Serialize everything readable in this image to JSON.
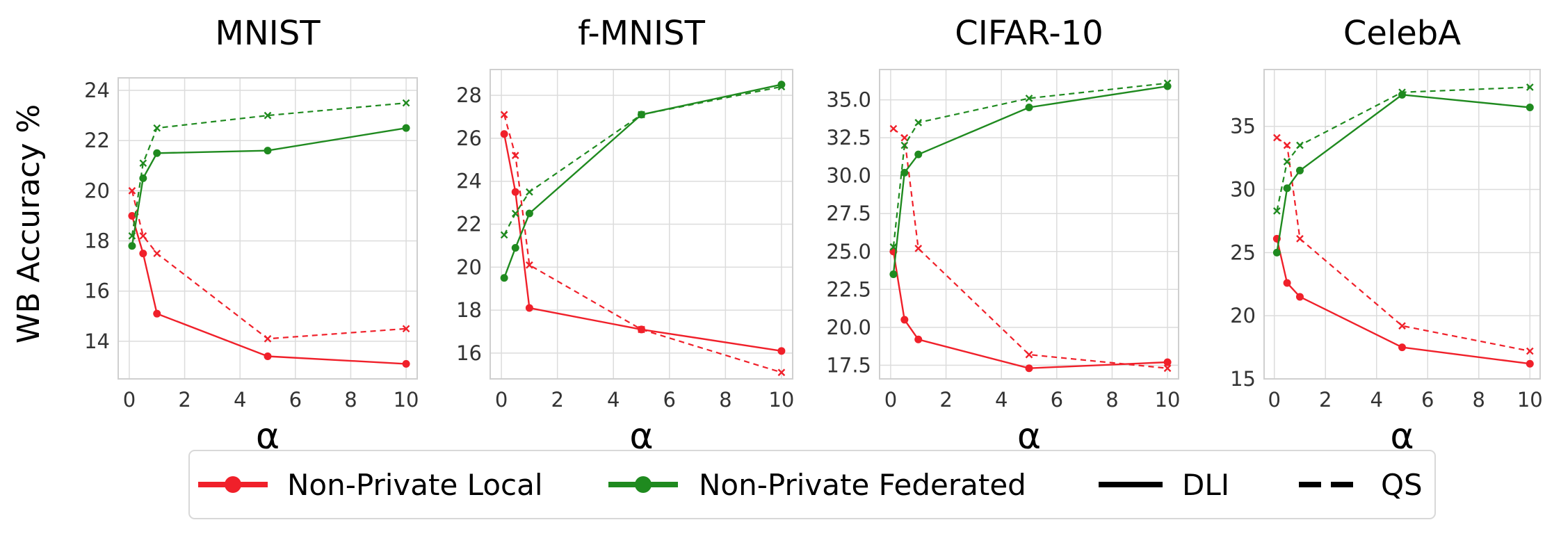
{
  "figure": {
    "ylabel": "WB Accuracy %",
    "legend": {
      "placement": "bottom-center",
      "entries": [
        {
          "label": "Non-Private Local",
          "color": "#f0202a",
          "style": "solid-marker"
        },
        {
          "label": "Non-Private Federated",
          "color": "#1f8a1f",
          "style": "solid-marker"
        },
        {
          "label": "DLI",
          "color": "#000000",
          "style": "solid"
        },
        {
          "label": "QS",
          "color": "#000000",
          "style": "dashed"
        }
      ]
    }
  },
  "chart_data": [
    {
      "type": "line",
      "title": "MNIST",
      "xlabel": "α",
      "ylabel": "WB Accuracy %",
      "xlim": [
        -0.4,
        10.4
      ],
      "ylim": [
        12.5,
        24.5
      ],
      "xticks": [
        0,
        2,
        4,
        6,
        8,
        10
      ],
      "yticks": [
        14,
        16,
        18,
        20,
        22,
        24
      ],
      "ytick_labels": [
        "14",
        "16",
        "18",
        "20",
        "22",
        "24"
      ],
      "grid": true,
      "x": [
        0.1,
        0.5,
        1,
        5,
        10
      ],
      "series": [
        {
          "name": "Non-Private Local",
          "method": "DLI",
          "color": "#f0202a",
          "dashed": false,
          "values": [
            19.0,
            17.5,
            15.1,
            13.4,
            13.1
          ]
        },
        {
          "name": "Non-Private Local",
          "method": "QS",
          "color": "#f0202a",
          "dashed": true,
          "values": [
            20.0,
            18.2,
            17.5,
            14.1,
            14.5
          ]
        },
        {
          "name": "Non-Private Federated",
          "method": "DLI",
          "color": "#1f8a1f",
          "dashed": false,
          "values": [
            17.8,
            20.5,
            21.5,
            21.6,
            22.5
          ]
        },
        {
          "name": "Non-Private Federated",
          "method": "QS",
          "color": "#1f8a1f",
          "dashed": true,
          "values": [
            18.2,
            21.1,
            22.5,
            23.0,
            23.5
          ]
        }
      ]
    },
    {
      "type": "line",
      "title": "f-MNIST",
      "xlabel": "α",
      "ylabel": "",
      "xlim": [
        -0.4,
        10.4
      ],
      "ylim": [
        14.8,
        29.2
      ],
      "xticks": [
        0,
        2,
        4,
        6,
        8,
        10
      ],
      "yticks": [
        16,
        18,
        20,
        22,
        24,
        26,
        28
      ],
      "ytick_labels": [
        "16",
        "18",
        "20",
        "22",
        "24",
        "26",
        "28"
      ],
      "grid": true,
      "x": [
        0.1,
        0.5,
        1,
        5,
        10
      ],
      "series": [
        {
          "name": "Non-Private Local",
          "method": "DLI",
          "color": "#f0202a",
          "dashed": false,
          "values": [
            26.2,
            23.5,
            18.1,
            17.1,
            16.1
          ]
        },
        {
          "name": "Non-Private Local",
          "method": "QS",
          "color": "#f0202a",
          "dashed": true,
          "values": [
            27.1,
            25.2,
            20.1,
            17.1,
            15.1
          ]
        },
        {
          "name": "Non-Private Federated",
          "method": "DLI",
          "color": "#1f8a1f",
          "dashed": false,
          "values": [
            19.5,
            20.9,
            22.5,
            27.1,
            28.5
          ]
        },
        {
          "name": "Non-Private Federated",
          "method": "QS",
          "color": "#1f8a1f",
          "dashed": true,
          "values": [
            21.5,
            22.5,
            23.5,
            27.1,
            28.4
          ]
        }
      ]
    },
    {
      "type": "line",
      "title": "CIFAR-10",
      "xlabel": "α",
      "ylabel": "",
      "xlim": [
        -0.4,
        10.4
      ],
      "ylim": [
        16.6,
        37.0
      ],
      "xticks": [
        0,
        2,
        4,
        6,
        8,
        10
      ],
      "yticks": [
        17.5,
        20.0,
        22.5,
        25.0,
        27.5,
        30.0,
        32.5,
        35.0
      ],
      "ytick_labels": [
        "17.5",
        "20.0",
        "22.5",
        "25.0",
        "27.5",
        "30.0",
        "32.5",
        "35.0"
      ],
      "grid": true,
      "x": [
        0.1,
        0.5,
        1,
        5,
        10
      ],
      "series": [
        {
          "name": "Non-Private Local",
          "method": "DLI",
          "color": "#f0202a",
          "dashed": false,
          "values": [
            25.0,
            20.5,
            19.2,
            17.3,
            17.7
          ]
        },
        {
          "name": "Non-Private Local",
          "method": "QS",
          "color": "#f0202a",
          "dashed": true,
          "values": [
            33.1,
            32.5,
            25.2,
            18.2,
            17.3
          ]
        },
        {
          "name": "Non-Private Federated",
          "method": "DLI",
          "color": "#1f8a1f",
          "dashed": false,
          "values": [
            23.5,
            30.2,
            31.4,
            34.5,
            35.9
          ]
        },
        {
          "name": "Non-Private Federated",
          "method": "QS",
          "color": "#1f8a1f",
          "dashed": true,
          "values": [
            25.3,
            32.0,
            33.5,
            35.1,
            36.1
          ]
        }
      ]
    },
    {
      "type": "line",
      "title": "CelebA",
      "xlabel": "α",
      "ylabel": "",
      "xlim": [
        -0.4,
        10.4
      ],
      "ylim": [
        15.0,
        39.5
      ],
      "xticks": [
        0,
        2,
        4,
        6,
        8,
        10
      ],
      "yticks": [
        15,
        20,
        25,
        30,
        35
      ],
      "ytick_labels": [
        "15",
        "20",
        "25",
        "30",
        "35"
      ],
      "grid": true,
      "x": [
        0.1,
        0.5,
        1,
        5,
        10
      ],
      "series": [
        {
          "name": "Non-Private Local",
          "method": "DLI",
          "color": "#f0202a",
          "dashed": false,
          "values": [
            26.1,
            22.6,
            21.5,
            17.5,
            16.2
          ]
        },
        {
          "name": "Non-Private Local",
          "method": "QS",
          "color": "#f0202a",
          "dashed": true,
          "values": [
            34.1,
            33.5,
            26.1,
            19.2,
            17.2
          ]
        },
        {
          "name": "Non-Private Federated",
          "method": "DLI",
          "color": "#1f8a1f",
          "dashed": false,
          "values": [
            25.0,
            30.1,
            31.5,
            37.5,
            36.5
          ]
        },
        {
          "name": "Non-Private Federated",
          "method": "QS",
          "color": "#1f8a1f",
          "dashed": true,
          "values": [
            28.3,
            32.2,
            33.5,
            37.7,
            38.1
          ]
        }
      ]
    }
  ]
}
